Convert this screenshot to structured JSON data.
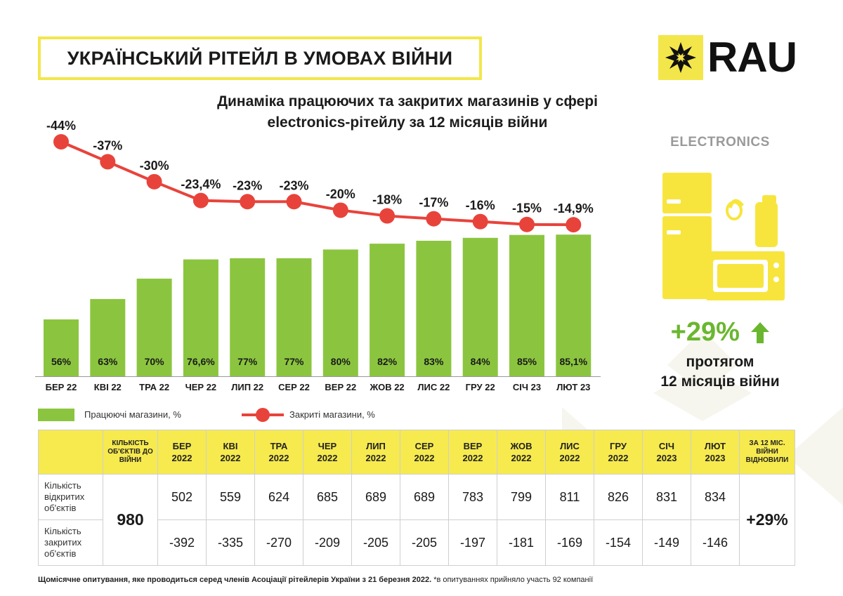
{
  "header": {
    "title": "УКРАЇНСЬКИЙ РІТЕЙЛ В УМОВАХ ВІЙНИ",
    "logo_text": "RAU",
    "subtitle_line1": "Динаміка працюючих та закритих магазинів у сфері",
    "subtitle_line2": "electronics-рітейлу за 12 місяців війни"
  },
  "side_panel": {
    "category": "ELECTRONICS",
    "growth_value": "+29%",
    "growth_line1": "протягом",
    "growth_line2": "12 місяців війни",
    "accent_green": "#6ab72f",
    "accent_yellow": "#f3e64a"
  },
  "chart_data": {
    "type": "bar",
    "categories": [
      "БЕР 22",
      "КВІ 22",
      "ТРА 22",
      "ЧЕР 22",
      "ЛИП 22",
      "СЕР 22",
      "ВЕР 22",
      "ЖОВ 22",
      "ЛИС 22",
      "ГРУ 22",
      "СІЧ 23",
      "ЛЮТ 23"
    ],
    "series": [
      {
        "name": "Працюючі магазини, %",
        "type": "bar",
        "color": "#8bc53f",
        "values": [
          56,
          63,
          70,
          76.6,
          77,
          77,
          80,
          82,
          83,
          84,
          85,
          85.1
        ],
        "labels": [
          "56%",
          "63%",
          "70%",
          "76,6%",
          "77%",
          "77%",
          "80%",
          "82%",
          "83%",
          "84%",
          "85%",
          "85,1%"
        ]
      },
      {
        "name": "Закриті магазини, %",
        "type": "line",
        "color": "#e8433b",
        "values": [
          -44,
          -37,
          -30,
          -23.4,
          -23,
          -23,
          -20,
          -18,
          -17,
          -16,
          -15,
          -14.9
        ],
        "labels": [
          "-44%",
          "-37%",
          "-30%",
          "-23,4%",
          "-23%",
          "-23%",
          "-20%",
          "-18%",
          "-17%",
          "-16%",
          "-15%",
          "-14,9%"
        ]
      }
    ],
    "legend_position": "bottom-left",
    "grid": false
  },
  "table": {
    "header_base": "КІЛЬКІСТЬ ОБ'ЄКТІВ ДО ВІЙНИ",
    "months": [
      {
        "m": "БЕР",
        "y": "2022"
      },
      {
        "m": "КВІ",
        "y": "2022"
      },
      {
        "m": "ТРА",
        "y": "2022"
      },
      {
        "m": "ЧЕР",
        "y": "2022"
      },
      {
        "m": "ЛИП",
        "y": "2022"
      },
      {
        "m": "СЕР",
        "y": "2022"
      },
      {
        "m": "ВЕР",
        "y": "2022"
      },
      {
        "m": "ЖОВ",
        "y": "2022"
      },
      {
        "m": "ЛИС",
        "y": "2022"
      },
      {
        "m": "ГРУ",
        "y": "2022"
      },
      {
        "m": "СІЧ",
        "y": "2023"
      },
      {
        "m": "ЛЮТ",
        "y": "2023"
      }
    ],
    "header_total": "ЗА 12 МІС. ВІЙНИ ВІДНОВИЛИ",
    "row_open_label": "Кількість відкритих об'єктів",
    "row_closed_label": "Кількість закритих об'єктів",
    "base_value": "980",
    "open_values": [
      "502",
      "559",
      "624",
      "685",
      "689",
      "689",
      "783",
      "799",
      "811",
      "826",
      "831",
      "834"
    ],
    "closed_values": [
      "-392",
      "-335",
      "-270",
      "-209",
      "-205",
      "-205",
      "-197",
      "-181",
      "-169",
      "-154",
      "-149",
      "-146"
    ],
    "total_value": "+29%"
  },
  "footnote": {
    "main": "Щомісячне опитування, яке проводиться серед членів Асоціації рітейлерів України з 21 березня 2022.",
    "note": "*в опитуваннях прийняло участь 92 компанії"
  }
}
